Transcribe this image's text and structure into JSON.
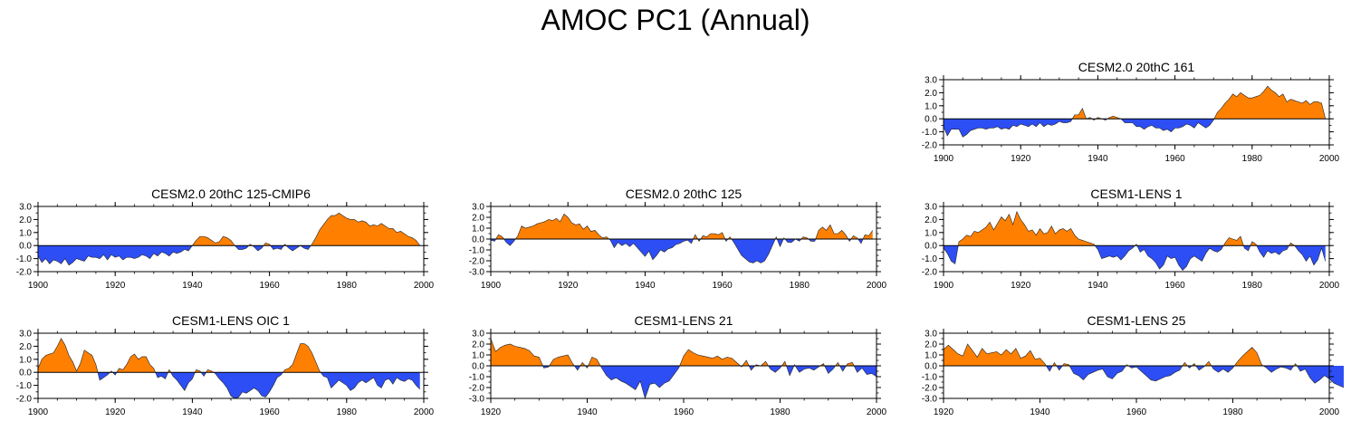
{
  "figure_title": "AMOC PC1 (Annual)",
  "colors": {
    "positive": "#ff8000",
    "negative": "#2d4ef5",
    "axis": "#000000"
  },
  "chart_data": [
    {
      "type": "area",
      "title": "CESM2.0 20thC 161",
      "xlim": [
        1900,
        2000
      ],
      "ylim": [
        -2.0,
        3.0
      ],
      "xticks": [
        1900,
        1920,
        1940,
        1960,
        1980,
        2000
      ],
      "yticks": [
        "3.0",
        "2.0",
        "1.0",
        "0.0",
        "-1.0",
        "-2.0"
      ],
      "series_start": 1900,
      "values": [
        -0.6,
        -1.3,
        -0.8,
        -0.8,
        -0.8,
        -1.4,
        -1.2,
        -0.9,
        -0.8,
        -0.7,
        -0.7,
        -0.8,
        -0.7,
        -0.7,
        -0.6,
        -0.8,
        -0.7,
        -0.8,
        -0.5,
        -0.6,
        -0.4,
        -0.5,
        -0.6,
        -0.4,
        -0.6,
        -0.3,
        -0.6,
        -0.4,
        -0.5,
        -0.4,
        -0.2,
        -0.3,
        -0.3,
        -0.2,
        0.3,
        0.3,
        0.8,
        0.0,
        0.1,
        -0.1,
        0.1,
        0.0,
        -0.1,
        0.1,
        0.2,
        0.1,
        0.0,
        -0.3,
        -0.3,
        -0.3,
        -0.6,
        -0.6,
        -0.8,
        -0.6,
        -0.5,
        -0.7,
        -0.7,
        -0.9,
        -0.8,
        -1.0,
        -0.7,
        -0.7,
        -0.6,
        -0.4,
        -0.5,
        -0.7,
        -0.3,
        -0.5,
        -0.7,
        -0.5,
        -0.1,
        0.5,
        0.8,
        1.2,
        1.5,
        1.9,
        1.7,
        2.0,
        1.8,
        1.6,
        1.6,
        1.7,
        1.8,
        2.1,
        2.5,
        2.2,
        2.0,
        1.7,
        1.9,
        1.3,
        1.5,
        1.4,
        1.3,
        1.2,
        1.4,
        1.1,
        1.3,
        1.3,
        1.2,
        0.0
      ]
    },
    {
      "type": "area",
      "title": "CESM2.0 20thC 125-CMIP6",
      "xlim": [
        1900,
        2000
      ],
      "ylim": [
        -2.0,
        3.0
      ],
      "xticks": [
        1900,
        1920,
        1940,
        1960,
        1980,
        2000
      ],
      "yticks": [
        "3.0",
        "2.0",
        "1.0",
        "0.0",
        "-1.0",
        "-2.0"
      ],
      "series_start": 1900,
      "values": [
        -0.8,
        -1.3,
        -1.0,
        -1.4,
        -1.1,
        -1.2,
        -1.4,
        -1.0,
        -1.5,
        -1.3,
        -1.0,
        -1.1,
        -1.2,
        -0.8,
        -0.9,
        -0.9,
        -1.0,
        -0.7,
        -1.1,
        -0.7,
        -0.9,
        -0.8,
        -1.1,
        -0.9,
        -0.9,
        -1.0,
        -0.9,
        -0.7,
        -0.8,
        -1.0,
        -0.6,
        -0.8,
        -0.5,
        -0.6,
        -0.8,
        -0.5,
        -0.6,
        -0.5,
        -0.3,
        -0.4,
        0.0,
        0.4,
        0.7,
        0.7,
        0.6,
        0.4,
        0.2,
        0.3,
        0.7,
        0.6,
        0.4,
        0.0,
        -0.3,
        -0.3,
        -0.2,
        0.1,
        -0.1,
        -0.4,
        -0.2,
        0.2,
        0.1,
        -0.3,
        -0.2,
        -0.3,
        0.1,
        -0.2,
        -0.4,
        -0.2,
        0.0,
        -0.2,
        -0.3,
        0.1,
        0.6,
        1.2,
        1.6,
        2.0,
        2.3,
        2.3,
        2.5,
        2.3,
        2.1,
        2.0,
        2.0,
        1.8,
        1.9,
        1.8,
        1.5,
        1.6,
        1.5,
        1.7,
        1.5,
        1.3,
        1.3,
        1.0,
        1.1,
        0.9,
        0.7,
        0.6,
        0.4,
        0.0
      ]
    },
    {
      "type": "area",
      "title": "CESM2.0 20thC 125",
      "xlim": [
        1900,
        2000
      ],
      "ylim": [
        -3.0,
        3.0
      ],
      "xticks": [
        1900,
        1920,
        1940,
        1960,
        1980,
        2000
      ],
      "yticks": [
        "3.0",
        "2.0",
        "1.0",
        "0.0",
        "-1.0",
        "-2.0",
        "-3.0"
      ],
      "series_start": 1900,
      "values": [
        -0.1,
        -0.2,
        0.4,
        0.2,
        -0.3,
        -0.6,
        -0.2,
        0.3,
        1.2,
        1.0,
        1.1,
        1.2,
        1.4,
        1.5,
        1.6,
        1.8,
        1.7,
        1.9,
        1.6,
        2.3,
        2.0,
        1.5,
        1.3,
        1.4,
        0.9,
        1.2,
        0.7,
        0.8,
        0.4,
        0.1,
        0.2,
        -0.1,
        -0.8,
        -0.3,
        -0.6,
        -0.4,
        -0.7,
        -0.4,
        -0.8,
        -1.2,
        -1.6,
        -1.1,
        -1.9,
        -1.5,
        -1.0,
        -1.2,
        -0.9,
        -0.8,
        -0.5,
        -0.4,
        -0.2,
        -0.1,
        -0.4,
        0.4,
        -0.2,
        0.3,
        0.2,
        0.5,
        0.5,
        0.4,
        0.6,
        -0.2,
        0.2,
        -0.3,
        -0.9,
        -1.5,
        -1.8,
        -2.1,
        -2.2,
        -2.0,
        -2.2,
        -2.0,
        -1.4,
        -0.6,
        0.2,
        -0.7,
        0.1,
        -0.3,
        -0.3,
        0.0,
        -0.2,
        0.2,
        0.1,
        -0.2,
        -0.2,
        0.8,
        1.1,
        0.8,
        1.3,
        0.5,
        0.5,
        0.8,
        0.4,
        -0.2,
        0.3,
        0.1,
        -0.4,
        0.4,
        0.3,
        0.8
      ]
    },
    {
      "type": "area",
      "title": "CESM1-LENS 1",
      "xlim": [
        1900,
        2000
      ],
      "ylim": [
        -2.0,
        3.0
      ],
      "xticks": [
        1900,
        1920,
        1940,
        1960,
        1980,
        2000
      ],
      "yticks": [
        "3.0",
        "2.0",
        "1.0",
        "0.0",
        "-1.0",
        "-2.0"
      ],
      "series_start": 1900,
      "values": [
        -0.2,
        -0.6,
        -1.2,
        -1.4,
        0.3,
        0.5,
        0.8,
        0.7,
        1.1,
        1.0,
        1.2,
        1.4,
        1.8,
        1.2,
        1.7,
        2.2,
        1.9,
        2.4,
        1.6,
        2.6,
        2.0,
        1.6,
        1.1,
        1.2,
        0.8,
        1.3,
        0.9,
        1.0,
        1.5,
        0.9,
        1.2,
        1.3,
        1.1,
        1.3,
        0.8,
        0.5,
        0.4,
        0.3,
        0.2,
        0.1,
        -0.3,
        -1.0,
        -0.9,
        -0.8,
        -0.9,
        -0.8,
        -1.1,
        -0.8,
        -0.4,
        -0.2,
        0.1,
        -0.5,
        -0.3,
        -0.8,
        -1.0,
        -1.3,
        -1.8,
        -1.5,
        -0.8,
        -1.0,
        -0.9,
        -1.5,
        -1.9,
        -1.6,
        -1.0,
        -0.8,
        -1.0,
        -1.2,
        -0.6,
        -0.2,
        -0.4,
        -0.5,
        -0.3,
        0.2,
        0.6,
        0.5,
        0.4,
        0.7,
        -0.2,
        -0.4,
        0.3,
        0.1,
        -0.5,
        -0.9,
        -0.4,
        -0.6,
        -0.5,
        -0.7,
        -0.4,
        -0.3,
        0.2,
        0.0,
        -0.4,
        -0.7,
        -1.2,
        -0.8,
        -1.5,
        -1.1,
        -0.2,
        -1.2
      ]
    },
    {
      "type": "area",
      "title": "CESM1-LENS OIC 1",
      "xlim": [
        1900,
        2000
      ],
      "ylim": [
        -2.0,
        3.0
      ],
      "xticks": [
        1900,
        1920,
        1940,
        1960,
        1980,
        2000
      ],
      "yticks": [
        "3.0",
        "2.0",
        "1.0",
        "0.0",
        "-1.0",
        "-2.0"
      ],
      "series_start": 1900,
      "values": [
        0.3,
        1.0,
        1.3,
        1.4,
        1.5,
        2.0,
        2.6,
        2.1,
        1.3,
        0.8,
        0.1,
        0.7,
        1.7,
        1.5,
        1.3,
        0.6,
        -0.6,
        -0.4,
        -0.2,
        0.1,
        -0.2,
        0.3,
        0.2,
        0.6,
        1.2,
        1.4,
        1.0,
        1.2,
        1.2,
        0.6,
        0.3,
        -0.4,
        -0.3,
        -0.5,
        0.2,
        -0.3,
        -0.6,
        -1.0,
        -1.4,
        -0.8,
        -0.5,
        0.2,
        0.1,
        -0.3,
        0.2,
        0.1,
        -0.1,
        -0.5,
        -0.8,
        -1.2,
        -1.8,
        -2.0,
        -1.9,
        -1.5,
        -1.6,
        -1.4,
        -1.2,
        -1.4,
        -1.8,
        -1.9,
        -1.5,
        -1.0,
        -0.4,
        -0.2,
        0.2,
        0.3,
        0.6,
        1.4,
        2.2,
        2.2,
        2.0,
        1.5,
        0.8,
        0.1,
        -0.3,
        -0.4,
        -1.2,
        -0.9,
        -0.6,
        -0.8,
        -1.0,
        -1.4,
        -1.2,
        -0.8,
        -0.6,
        -0.8,
        -0.6,
        -0.4,
        -1.0,
        -1.2,
        -0.6,
        -0.5,
        -0.9,
        -0.4,
        -0.6,
        -0.7,
        -0.5,
        -0.6,
        -1.0,
        -1.3
      ]
    },
    {
      "type": "area",
      "title": "CESM1-LENS 21",
      "xlim": [
        1920,
        2000
      ],
      "ylim": [
        -3.0,
        3.0
      ],
      "xticks": [
        1920,
        1940,
        1960,
        1980,
        2000
      ],
      "yticks": [
        "3.0",
        "2.0",
        "1.0",
        "0.0",
        "-1.0",
        "-2.0",
        "-3.0"
      ],
      "series_start": 1920,
      "values": [
        2.5,
        1.3,
        1.7,
        1.9,
        2.0,
        1.8,
        1.7,
        1.6,
        1.4,
        0.9,
        0.8,
        -0.2,
        -0.1,
        0.6,
        0.8,
        0.9,
        1.0,
        0.2,
        -0.4,
        0.3,
        -0.2,
        0.8,
        0.6,
        -0.2,
        -0.9,
        -1.3,
        -1.1,
        -1.4,
        -1.6,
        -1.9,
        -2.2,
        -1.4,
        -3.0,
        -1.7,
        -1.6,
        -2.0,
        -1.6,
        -1.4,
        -0.8,
        -0.2,
        0.9,
        1.5,
        1.2,
        1.0,
        0.9,
        0.8,
        0.7,
        0.9,
        0.6,
        0.8,
        0.7,
        0.3,
        -0.1,
        0.5,
        -0.4,
        0.1,
        0.0,
        0.4,
        -0.3,
        -0.6,
        -0.2,
        0.4,
        -0.9,
        0.1,
        -0.6,
        -0.3,
        -0.2,
        -0.4,
        -0.1,
        0.2,
        -0.7,
        -0.3,
        0.3,
        -0.5,
        0.2,
        0.3,
        -0.6,
        -0.2,
        -0.8,
        -0.7,
        -1.0
      ]
    },
    {
      "type": "area",
      "title": "CESM1-LENS 25",
      "xlim": [
        1920,
        2000
      ],
      "ylim": [
        -3.0,
        3.0
      ],
      "xticks": [
        1920,
        1940,
        1960,
        1980,
        2000
      ],
      "yticks": [
        "3.0",
        "2.0",
        "1.0",
        "0.0",
        "-1.0",
        "-2.0",
        "-3.0"
      ],
      "series_start": 1920,
      "values": [
        1.5,
        1.9,
        1.5,
        1.1,
        0.9,
        2.0,
        1.4,
        0.8,
        1.6,
        1.1,
        1.2,
        1.3,
        1.0,
        1.5,
        1.1,
        1.6,
        0.7,
        0.9,
        1.4,
        0.6,
        0.7,
        0.2,
        -0.5,
        0.3,
        -0.4,
        0.2,
        0.1,
        -0.7,
        -0.9,
        -1.3,
        -0.8,
        -0.6,
        -0.4,
        -0.3,
        -1.0,
        -1.2,
        -0.7,
        -0.5,
        0.1,
        -0.2,
        -0.1,
        -0.5,
        -0.9,
        -1.3,
        -1.4,
        -1.2,
        -1.0,
        -0.9,
        -0.6,
        -0.4,
        0.3,
        -0.2,
        0.2,
        -0.4,
        -0.1,
        0.4,
        -0.3,
        -0.6,
        -0.3,
        -0.6,
        -0.2,
        0.4,
        0.9,
        1.3,
        1.7,
        1.2,
        0.1,
        -0.2,
        -0.6,
        -0.3,
        -0.1,
        -0.2,
        -0.4,
        0.2,
        -0.5,
        -0.3,
        -1.1,
        -1.6,
        -1.3,
        -0.9,
        -1.2,
        -1.6,
        -1.8,
        -2.0
      ]
    }
  ]
}
